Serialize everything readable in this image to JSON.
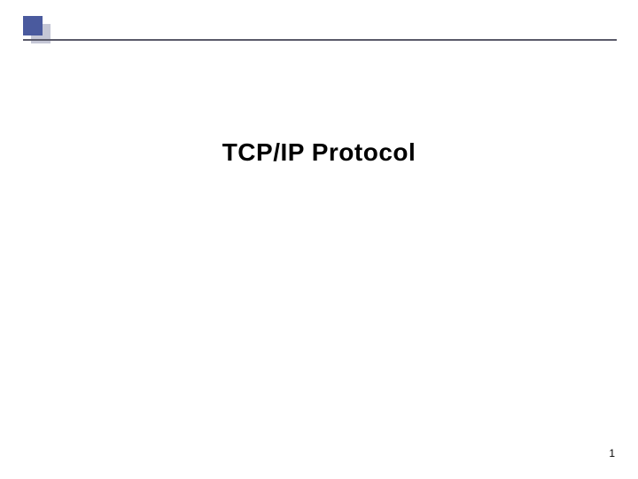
{
  "slide": {
    "title": "TCP/IP Protocol",
    "page_number": "1",
    "bullet_color": "#4a5a9e",
    "bullet_shadow_color": "#c5c7d6",
    "line_color": "#5a5a6a",
    "background_color": "#ffffff",
    "title_fontsize": 28,
    "title_color": "#000000",
    "page_number_fontsize": 12
  }
}
